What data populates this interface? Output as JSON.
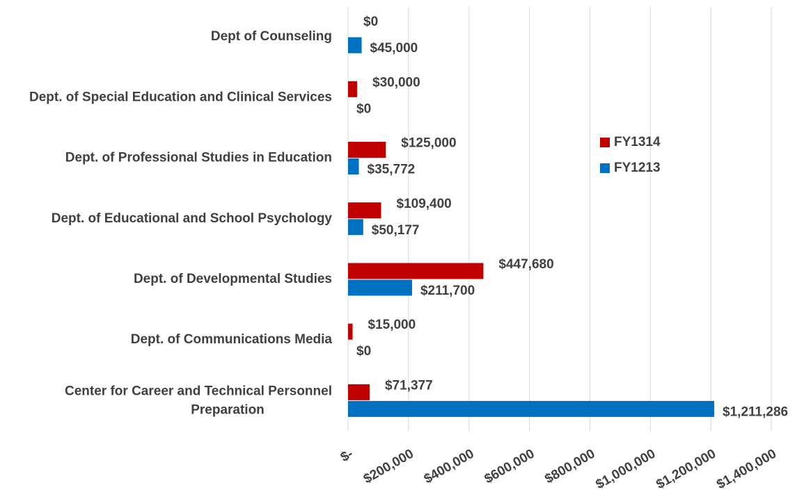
{
  "chart_data": {
    "type": "hbar",
    "categories": [
      "Dept of Counseling",
      "Dept. of Special Education and Clinical Services",
      "Dept. of Professional Studies in Education",
      "Dept. of Educational and School Psychology",
      "Dept. of Developmental Studies",
      "Dept. of Communications Media",
      "Center for Career and Technical Personnel Preparation"
    ],
    "series": [
      {
        "name": "FY1314",
        "color": "#c00000",
        "values": [
          0,
          30000,
          125000,
          109400,
          447680,
          15000,
          71377
        ],
        "value_labels": [
          "$0",
          "$30,000",
          "$125,000",
          "$109,400",
          "$447,680",
          "$15,000",
          "$71,377"
        ]
      },
      {
        "name": "FY1213",
        "color": "#0070c0",
        "values": [
          45000,
          0,
          35772,
          50177,
          211700,
          0,
          1211286
        ],
        "value_labels": [
          "$45,000",
          "$0",
          "$35,772",
          "$50,177",
          "$211,700",
          "$0",
          "$1,211,286"
        ]
      }
    ],
    "xlim": [
      0,
      1400000
    ],
    "xticks": [
      {
        "value": 0,
        "label": "$-"
      },
      {
        "value": 200000,
        "label": "$200,000"
      },
      {
        "value": 400000,
        "label": "$400,000"
      },
      {
        "value": 600000,
        "label": "$600,000"
      },
      {
        "value": 800000,
        "label": "$800,000"
      },
      {
        "value": 1000000,
        "label": "$1,000,000"
      },
      {
        "value": 1200000,
        "label": "$1,200,000"
      },
      {
        "value": 1400000,
        "label": "$1,400,000"
      }
    ],
    "grid": true,
    "legend": "right"
  }
}
